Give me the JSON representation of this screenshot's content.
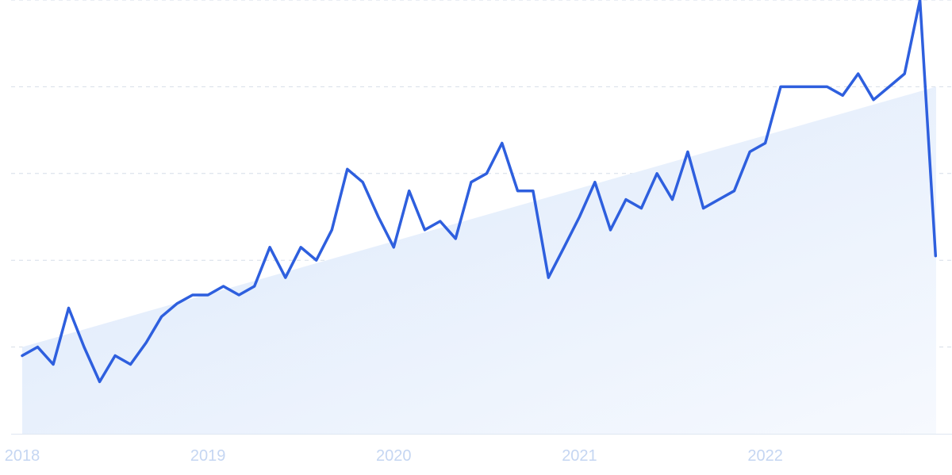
{
  "chart_data": {
    "type": "line",
    "title": "",
    "xlabel": "",
    "ylabel": "",
    "x_tick_labels": [
      "2018",
      "2019",
      "2020",
      "2021",
      "2022"
    ],
    "x_range": [
      2018.0,
      2022.92
    ],
    "ylim": [
      0,
      100
    ],
    "grid": "horizontal dashed",
    "legend": "none",
    "series": [
      {
        "values": [
          18,
          20,
          16,
          29,
          20,
          12,
          18,
          16,
          21,
          27,
          30,
          32,
          32,
          34,
          32,
          34,
          43,
          36,
          43,
          40,
          47,
          61,
          58,
          50,
          43,
          56,
          47,
          49,
          45,
          58,
          60,
          67,
          56,
          56,
          36,
          43,
          50,
          58,
          47,
          54,
          52,
          60,
          54,
          65,
          52,
          54,
          56,
          65,
          67,
          80,
          80,
          80,
          80,
          78,
          83,
          77,
          80,
          83,
          100,
          41
        ],
        "x": [
          2018.0,
          2018.083,
          2018.167,
          2018.25,
          2018.333,
          2018.417,
          2018.5,
          2018.583,
          2018.667,
          2018.75,
          2018.833,
          2018.917,
          2019.0,
          2019.083,
          2019.167,
          2019.25,
          2019.333,
          2019.417,
          2019.5,
          2019.583,
          2019.667,
          2019.75,
          2019.833,
          2019.917,
          2020.0,
          2020.083,
          2020.167,
          2020.25,
          2020.333,
          2020.417,
          2020.5,
          2020.583,
          2020.667,
          2020.75,
          2020.833,
          2020.917,
          2021.0,
          2021.083,
          2021.167,
          2021.25,
          2021.333,
          2021.417,
          2021.5,
          2021.583,
          2021.667,
          2021.75,
          2021.833,
          2021.917,
          2022.0,
          2022.083,
          2022.167,
          2022.25,
          2022.333,
          2022.417,
          2022.5,
          2022.583,
          2022.667,
          2022.75,
          2022.833,
          2022.917
        ]
      }
    ],
    "trend": {
      "start": 20,
      "end": 80
    }
  },
  "colors": {
    "line": "#2e5fde",
    "fill_top": "#dbe8fb",
    "fill_bottom": "#f6f9fe",
    "grid": "#d6dee8",
    "tick_text": "#c5d6f2",
    "baseline": "#dfe7f1"
  }
}
